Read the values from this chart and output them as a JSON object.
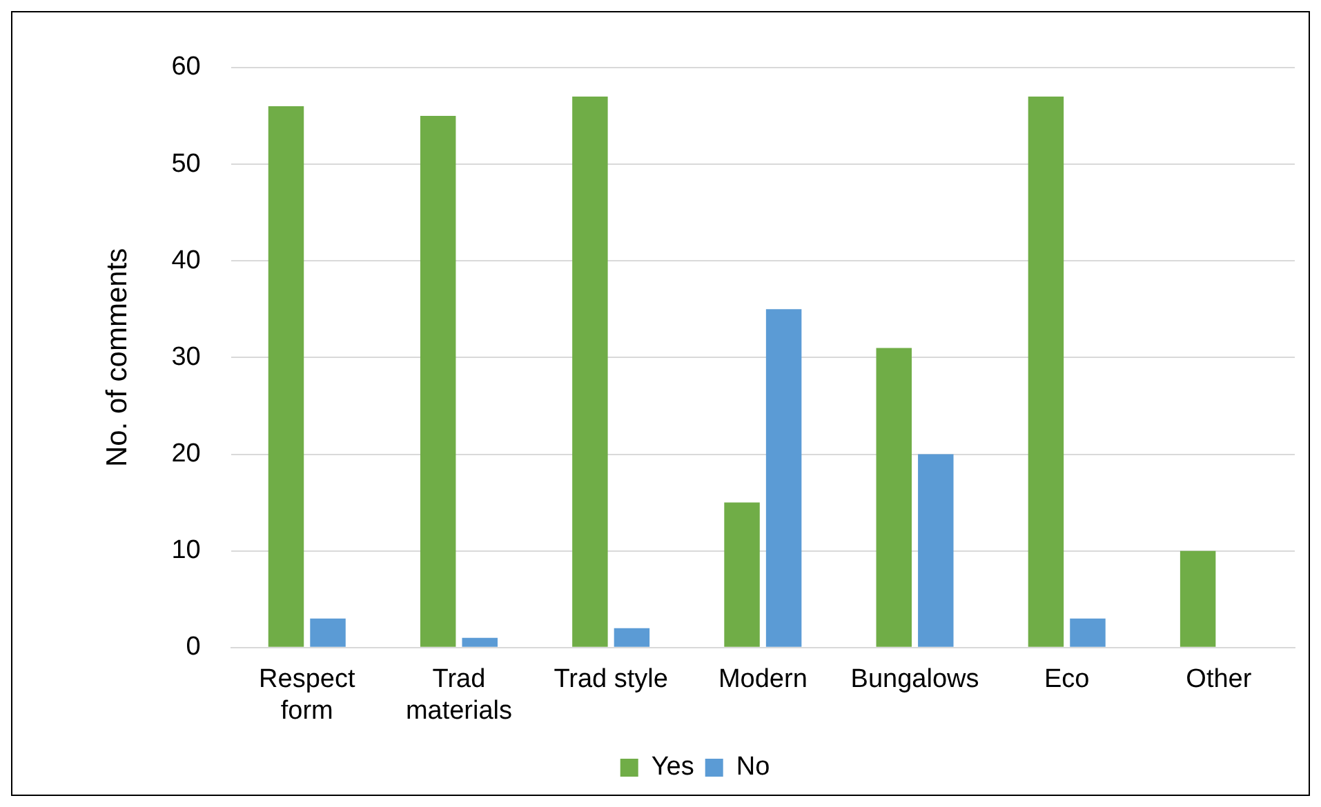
{
  "chart_data": {
    "type": "bar",
    "ylabel": "No. of comments",
    "categories": [
      "Respect form",
      "Trad materials",
      "Trad style",
      "Modern",
      "Bungalows",
      "Eco",
      "Other"
    ],
    "series": [
      {
        "name": "Yes",
        "color": "#70ad47",
        "values": [
          56,
          55,
          57,
          15,
          31,
          57,
          10
        ]
      },
      {
        "name": "No",
        "color": "#5b9bd5",
        "values": [
          3,
          1,
          2,
          35,
          20,
          3,
          0
        ]
      }
    ],
    "ylim": [
      0,
      60
    ],
    "yticks": [
      0,
      10,
      20,
      30,
      40,
      50,
      60
    ],
    "grid": "y",
    "legend": "bottom"
  }
}
